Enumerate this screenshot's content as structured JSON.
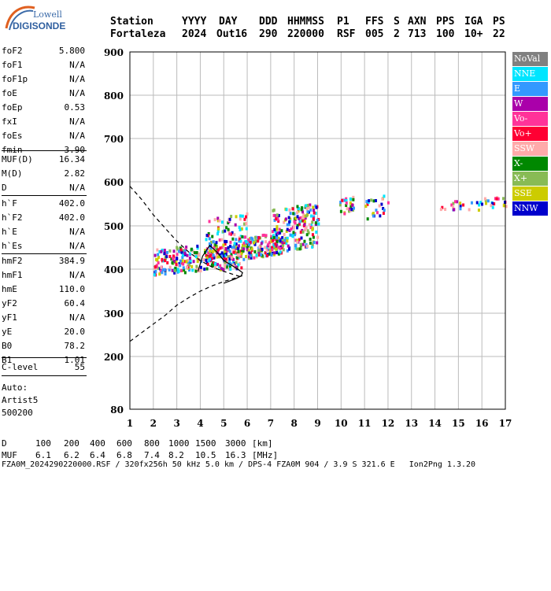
{
  "logo": {
    "line1": "Lowell",
    "line2": "DIGISONDE"
  },
  "header": {
    "labels": [
      "Station",
      "YYYY",
      "DAY",
      "DDD",
      "HHMMSS",
      "P1",
      "FFS",
      "S",
      "AXN",
      "PPS",
      "IGA",
      "PS"
    ],
    "values": [
      "Fortaleza",
      "2024",
      "Out16",
      "290",
      "220000",
      "RSF",
      "005",
      "2",
      "713",
      "100",
      "10+",
      "22"
    ]
  },
  "params": [
    {
      "label": "foF2",
      "value": "5.800"
    },
    {
      "label": "foF1",
      "value": "N/A"
    },
    {
      "label": "foF1p",
      "value": "N/A"
    },
    {
      "label": "foE",
      "value": "N/A"
    },
    {
      "label": "foEp",
      "value": "0.53"
    },
    {
      "label": "fxI",
      "value": "N/A"
    },
    {
      "label": "foEs",
      "value": "N/A"
    },
    {
      "label": "fmin",
      "value": "3.90"
    },
    {
      "label": "MUF(D)",
      "value": "16.34"
    },
    {
      "label": "M(D)",
      "value": "2.82"
    },
    {
      "label": "D",
      "value": "N/A"
    },
    {
      "label": "h`F",
      "value": "402.0"
    },
    {
      "label": "h`F2",
      "value": "402.0"
    },
    {
      "label": "h`E",
      "value": "N/A"
    },
    {
      "label": "h`Es",
      "value": "N/A"
    },
    {
      "label": "hmF2",
      "value": "384.9"
    },
    {
      "label": "hmF1",
      "value": "N/A"
    },
    {
      "label": "hmE",
      "value": "110.0"
    },
    {
      "label": "yF2",
      "value": "60.4"
    },
    {
      "label": "yF1",
      "value": "N/A"
    },
    {
      "label": "yE",
      "value": "20.0"
    },
    {
      "label": "B0",
      "value": "78.2"
    },
    {
      "label": "B1",
      "value": "1.01"
    },
    {
      "label": "C-level",
      "value": "55"
    }
  ],
  "auto": [
    "Auto:",
    "Artist5",
    "500200"
  ],
  "legend": [
    {
      "label": "NoVal",
      "color": "#808080"
    },
    {
      "label": "NNE",
      "color": "#00e5ff"
    },
    {
      "label": "E",
      "color": "#3399ff"
    },
    {
      "label": "W",
      "color": "#aa00aa"
    },
    {
      "label": "Vo-",
      "color": "#ff3399"
    },
    {
      "label": "Vo+",
      "color": "#ff0033"
    },
    {
      "label": "SSW",
      "color": "#ffaaaa"
    },
    {
      "label": "X-",
      "color": "#008800"
    },
    {
      "label": "X+",
      "color": "#88bb55"
    },
    {
      "label": "SSE",
      "color": "#cccc00"
    },
    {
      "label": "NNW",
      "color": "#0000cc"
    }
  ],
  "footer": {
    "d_label": "D",
    "d_values": [
      "100",
      "200",
      "400",
      "600",
      "800",
      "1000",
      "1500",
      "3000",
      "[km]"
    ],
    "muf_label": "MUF",
    "muf_values": [
      "6.1",
      "6.2",
      "6.4",
      "6.8",
      "7.4",
      "8.2",
      "10.5",
      "16.3",
      "[MHz]"
    ],
    "file_line": "FZA0M_2024290220000.RSF / 320fx256h 50 kHz 5.0 km / DPS-4 FZA0M 904 / 3.9 S 321.6 E   Ion2Png 1.3.20"
  },
  "chart_data": {
    "type": "scatter",
    "title": "",
    "xlabel": "",
    "ylabel": "",
    "xlim": [
      1,
      17
    ],
    "ylim": [
      80,
      900
    ],
    "x_ticks": [
      1,
      2,
      3,
      4,
      5,
      6,
      7,
      8,
      9,
      10,
      11,
      12,
      13,
      14,
      15,
      16,
      17
    ],
    "y_ticks": [
      80,
      200,
      300,
      400,
      500,
      600,
      700,
      800,
      900
    ],
    "y_scale": "log-like",
    "grid": true,
    "legend_position": "right",
    "traces": [
      {
        "name": "",
        "points": [
          [
            1.0,
            590
          ],
          [
            1.5,
            560
          ],
          [
            2.0,
            525
          ],
          [
            2.5,
            495
          ],
          [
            3.0,
            465
          ],
          [
            3.5,
            440
          ],
          [
            4.0,
            420
          ],
          [
            4.5,
            405
          ],
          [
            5.0,
            395
          ],
          [
            5.4,
            388
          ],
          [
            5.7,
            383
          ],
          [
            5.8,
            380
          ]
        ]
      },
      {
        "name": "",
        "points": [
          [
            1.0,
            235
          ],
          [
            1.5,
            255
          ],
          [
            2.0,
            275
          ],
          [
            2.5,
            295
          ],
          [
            3.0,
            318
          ],
          [
            3.5,
            335
          ],
          [
            4.0,
            350
          ],
          [
            4.5,
            362
          ],
          [
            5.0,
            372
          ],
          [
            5.5,
            380
          ],
          [
            5.8,
            385
          ]
        ]
      }
    ],
    "profile": [
      [
        3.9,
        395
      ],
      [
        4.1,
        430
      ],
      [
        4.4,
        455
      ],
      [
        4.7,
        440
      ],
      [
        5.0,
        420
      ],
      [
        5.3,
        410
      ],
      [
        5.6,
        400
      ],
      [
        5.8,
        392
      ],
      [
        5.75,
        385
      ],
      [
        5.5,
        378
      ],
      [
        5.2,
        372
      ],
      [
        5.0,
        368
      ]
    ],
    "echo_clusters": [
      {
        "x": [
          2.0,
          5.8
        ],
        "y": [
          390,
          450
        ],
        "n": 300
      },
      {
        "x": [
          4.2,
          6.0
        ],
        "y": [
          420,
          520
        ],
        "n": 90
      },
      {
        "x": [
          5.8,
          7.5
        ],
        "y": [
          425,
          475
        ],
        "n": 140
      },
      {
        "x": [
          7.0,
          9.0
        ],
        "y": [
          440,
          540
        ],
        "n": 200
      },
      {
        "x": [
          9.9,
          10.5
        ],
        "y": [
          525,
          560
        ],
        "n": 30
      },
      {
        "x": [
          11.0,
          12.0
        ],
        "y": [
          515,
          560
        ],
        "n": 25
      },
      {
        "x": [
          14.0,
          17.0
        ],
        "y": [
          530,
          555
        ],
        "n": 40
      }
    ]
  }
}
